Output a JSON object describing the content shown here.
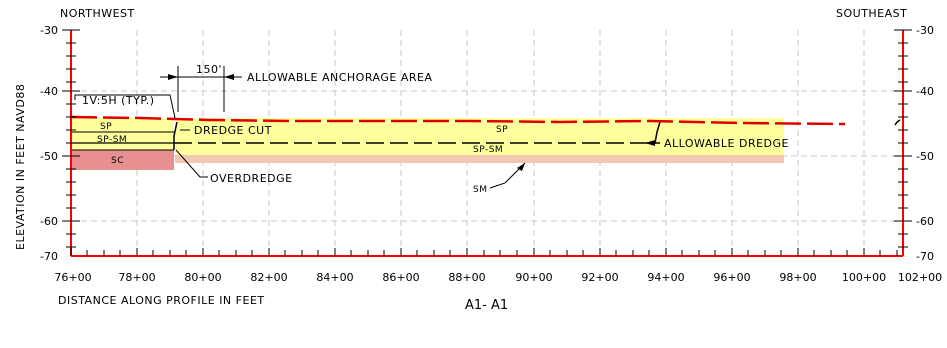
{
  "header": {
    "left": "NORTHWEST",
    "right": "SOUTHEAST"
  },
  "axes": {
    "ylabel": "ELEVATION IN FEET NAVD88",
    "xlabel": "DISTANCE ALONG PROFILE IN FEET",
    "title": "A1- A1",
    "y_ticks": [
      "-30",
      "-40",
      "-50",
      "-60",
      "-70"
    ],
    "x_ticks": [
      "76+00",
      "78+00",
      "80+00",
      "82+00",
      "84+00",
      "86+00",
      "88+00",
      "90+00",
      "92+00",
      "94+00",
      "96+00",
      "98+00",
      "100+00",
      "102+00"
    ]
  },
  "annotations": {
    "anchorage": "ALLOWABLE ANCHORAGE AREA",
    "dim": "150'",
    "slope": "1V:5H (TYP.)",
    "dredge_cut": "DREDGE CUT",
    "overdredge": "OVERDREDGE",
    "allowable_dredge": "ALLOWABLE DREDGE"
  },
  "soil_labels": {
    "sp_left": "SP",
    "spsm_left": "SP-SM",
    "sc": "SC",
    "sp_right": "SP",
    "spsm_right": "SP-SM",
    "sm": "SM"
  },
  "colors": {
    "grid": "#c8c8c8",
    "axis": "#ff0000",
    "sand": "#ffff9e",
    "clay": "#e88f8f",
    "silt": "#f0c8b4"
  }
}
